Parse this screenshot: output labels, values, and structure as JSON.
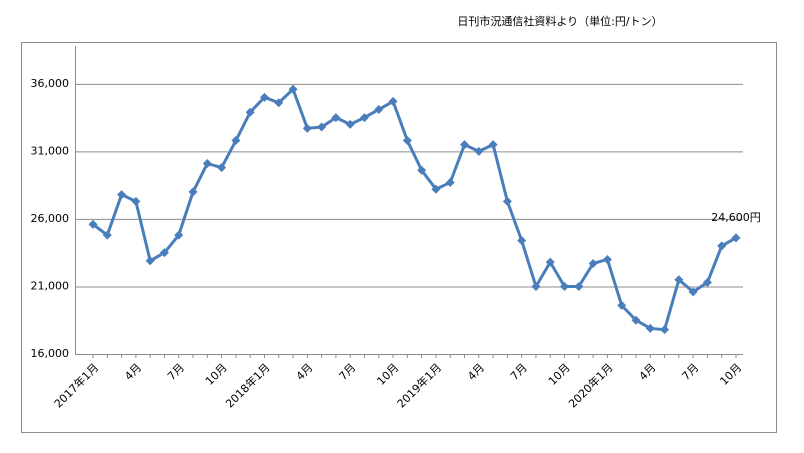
{
  "chart_data": {
    "type": "line",
    "title": "日刊市況通信社資料より（単位:円/トン）",
    "categories": [
      "2017年1月",
      null,
      null,
      "4月",
      null,
      null,
      "7月",
      null,
      null,
      "10月",
      null,
      null,
      "2018年1月",
      null,
      null,
      "4月",
      null,
      null,
      "7月",
      null,
      null,
      "10月",
      null,
      null,
      "2019年1月",
      null,
      null,
      "4月",
      null,
      null,
      "7月",
      null,
      null,
      "10月",
      null,
      null,
      "2020年1月",
      null,
      null,
      "4月",
      null,
      null,
      "7月",
      null,
      null,
      "10月"
    ],
    "series": [
      {
        "color": "#4a7ebb",
        "values": [
          25600,
          24800,
          27800,
          27300,
          22900,
          23500,
          24800,
          28000,
          30100,
          29800,
          31800,
          33900,
          35000,
          34600,
          35600,
          32700,
          32800,
          33500,
          33000,
          33500,
          34100,
          34700,
          31800,
          29600,
          28200,
          28700,
          31500,
          31000,
          31500,
          27300,
          24400,
          21000,
          22800,
          21000,
          21000,
          22700,
          23000,
          19600,
          18500,
          17900,
          17800,
          21500,
          20600,
          21300,
          24000,
          24600
        ],
        "value_labels": [
          null,
          null,
          null,
          null,
          null,
          null,
          null,
          null,
          null,
          null,
          null,
          null,
          null,
          null,
          null,
          null,
          null,
          null,
          null,
          null,
          null,
          null,
          null,
          null,
          null,
          null,
          null,
          null,
          null,
          null,
          null,
          null,
          null,
          null,
          null,
          null,
          null,
          null,
          null,
          null,
          null,
          null,
          null,
          null,
          null,
          "24,600円"
        ]
      }
    ],
    "ylim": [
      16000,
      38800
    ],
    "yticks": [
      {
        "value": 16000,
        "label": "16,000"
      },
      {
        "value": 21000,
        "label": "21,000"
      },
      {
        "value": 26000,
        "label": "26,000"
      },
      {
        "value": 31000,
        "label": "31,000"
      },
      {
        "value": 36000,
        "label": "36,000"
      }
    ],
    "grid": true
  }
}
